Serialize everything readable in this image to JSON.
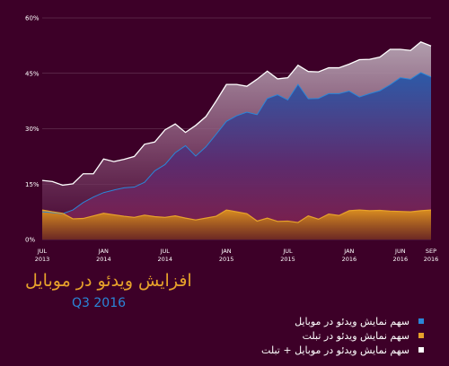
{
  "colors": {
    "background": "#3d0028",
    "mobile": "#2a86d8",
    "tablet": "#e7a22b",
    "combined": "#ffffff"
  },
  "title": "افزایش ویدئو در موبایل",
  "subtitle": "Q3 2016",
  "legend": [
    {
      "label": "سهم نمایش ویدئو در موبایل",
      "color": "#2a86d8"
    },
    {
      "label": "سهم نمایش ویدئو در تبلت",
      "color": "#e7a22b"
    },
    {
      "label": "سهم نمایش ویدئو در موبایل + تبلت",
      "color": "#ffffff"
    }
  ],
  "chart_data": {
    "type": "area",
    "title": "افزایش ویدئو در موبایل",
    "subtitle": "Q3 2016",
    "xlabel": "",
    "ylabel": "",
    "ylim": [
      0,
      60
    ],
    "yticks": [
      0,
      15,
      30,
      45,
      60
    ],
    "ytick_labels": [
      "0%",
      "15%",
      "30%",
      "45%",
      "60%"
    ],
    "xticks": [
      {
        "index": 0,
        "line1": "JUL",
        "line2": "2013"
      },
      {
        "index": 6,
        "line1": "JAN",
        "line2": "2014"
      },
      {
        "index": 12,
        "line1": "JUL",
        "line2": "2014"
      },
      {
        "index": 18,
        "line1": "JAN",
        "line2": "2015"
      },
      {
        "index": 24,
        "line1": "JUL",
        "line2": "2015"
      },
      {
        "index": 30,
        "line1": "JAN",
        "line2": "2016"
      },
      {
        "index": 35,
        "line1": "JUN",
        "line2": "2016"
      },
      {
        "index": 38,
        "line1": "SEP",
        "line2": "2016"
      }
    ],
    "grid": true,
    "legend_position": "bottom-right",
    "x": [
      "2013-07",
      "2013-08",
      "2013-09",
      "2013-10",
      "2013-11",
      "2013-12",
      "2014-01",
      "2014-02",
      "2014-03",
      "2014-04",
      "2014-05",
      "2014-06",
      "2014-07",
      "2014-08",
      "2014-09",
      "2014-10",
      "2014-11",
      "2014-12",
      "2015-01",
      "2015-02",
      "2015-03",
      "2015-04",
      "2015-05",
      "2015-06",
      "2015-07",
      "2015-08",
      "2015-09",
      "2015-10",
      "2015-11",
      "2015-12",
      "2016-01",
      "2016-02",
      "2016-03",
      "2016-04",
      "2016-05",
      "2016-06",
      "2016-07",
      "2016-08",
      "2016-09"
    ],
    "series": [
      {
        "name": "سهم نمایش ویدئو در موبایل + تبلت",
        "color": "#ffffff",
        "values": [
          16,
          15.7,
          14.7,
          15.1,
          17.8,
          17.8,
          21.8,
          21.1,
          21.7,
          22.5,
          25.8,
          26.4,
          29.7,
          31.3,
          29,
          30.9,
          33.3,
          37.5,
          42,
          42,
          41.5,
          43.4,
          45.6,
          43.5,
          43.8,
          47.2,
          45.5,
          45.4,
          46.5,
          46.5,
          47.5,
          48.7,
          48.8,
          49.4,
          51.5,
          51.5,
          51.2,
          53.5,
          52.4
        ]
      },
      {
        "name": "سهم نمایش ویدئو در موبایل",
        "color": "#2a86d8",
        "values": [
          7.5,
          7.3,
          7,
          8,
          10,
          11.5,
          12.7,
          13.4,
          14,
          14.2,
          15.5,
          18.6,
          20.3,
          23.5,
          25.4,
          22.6,
          25.1,
          28.5,
          32,
          33.5,
          34.5,
          33.8,
          38.2,
          39.2,
          37.8,
          42,
          38.1,
          38.2,
          39.5,
          39.5,
          40.2,
          38.6,
          39.5,
          40.3,
          41.9,
          43.8,
          43.4,
          45.2,
          44
        ]
      },
      {
        "name": "سهم نمایش ویدئو در تبلت",
        "color": "#e7a22b",
        "values": [
          8,
          7.5,
          7.1,
          5.6,
          5.7,
          6.4,
          7.1,
          6.7,
          6.3,
          6,
          6.6,
          6.2,
          6,
          6.4,
          5.8,
          5.3,
          5.8,
          6.3,
          8,
          7.5,
          7,
          5,
          5.8,
          4.9,
          5,
          4.6,
          6.4,
          5.5,
          6.9,
          6.5,
          7.8,
          8,
          7.8,
          7.9,
          7.7,
          7.6,
          7.5,
          7.8,
          8
        ]
      }
    ]
  }
}
